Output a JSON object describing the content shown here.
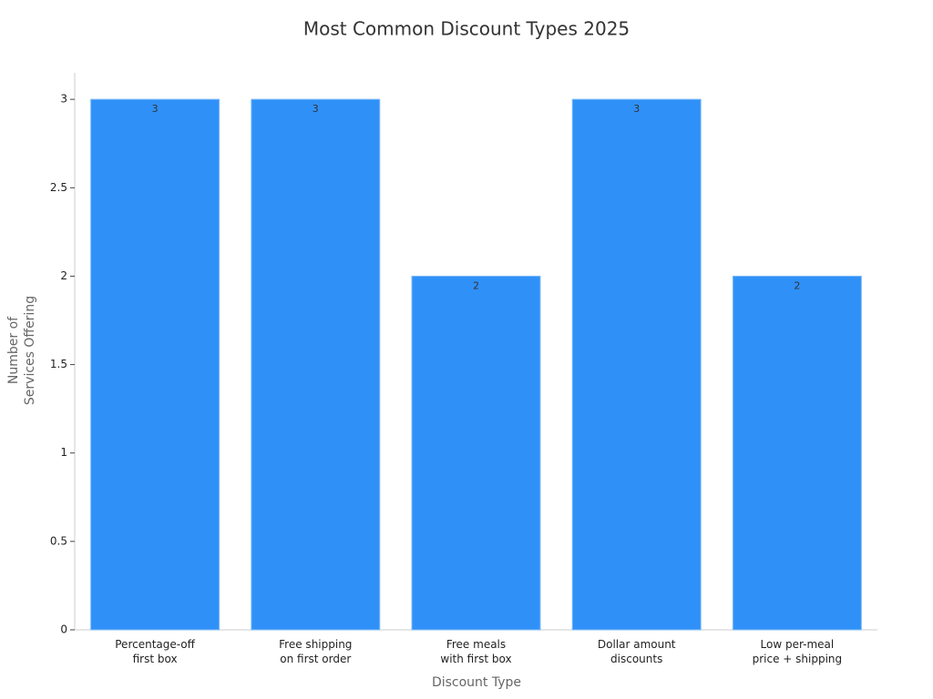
{
  "chart_data": {
    "type": "bar",
    "title": "Most Common Discount Types 2025",
    "x_label": "Discount Type",
    "y_label": "Number of\nServices Offering",
    "categories": [
      "Percentage-off\nfirst box",
      "Free shipping\non first order",
      "Free meals\nwith first box",
      "Dollar amount\ndiscounts",
      "Low per-meal\nprice + shipping"
    ],
    "values": [
      3,
      3,
      2,
      3,
      2
    ],
    "color": "#2f91f8",
    "ylim": [
      0,
      3.15
    ],
    "yticks": [
      0,
      0.5,
      1,
      1.5,
      2,
      2.5,
      3
    ],
    "grid": false
  }
}
